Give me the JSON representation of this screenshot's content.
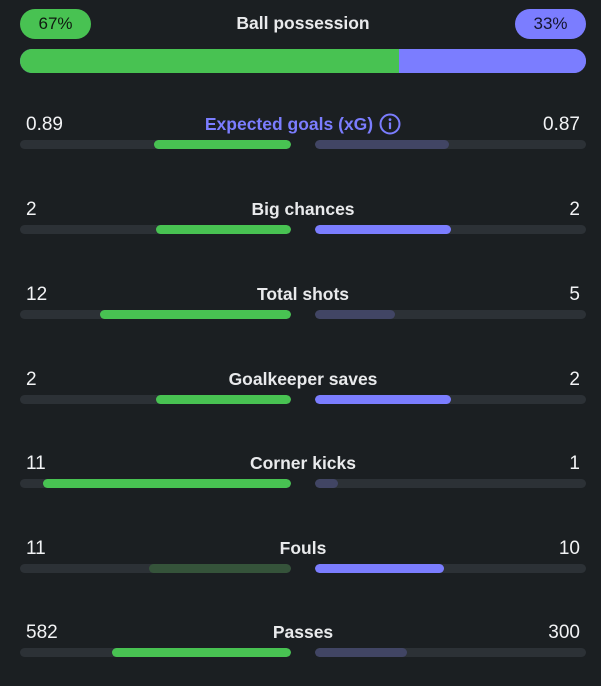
{
  "possession": {
    "label": "Ball possession",
    "home_label": "67%",
    "away_label": "33%",
    "home_value": 67,
    "away_value": 33,
    "home_color": "#48c252",
    "away_color": "#7b7dff"
  },
  "stats": [
    {
      "label": "Expected goals (xG)",
      "home": "0.89",
      "away": "0.87",
      "home_share": 0.5057,
      "away_share": 0.4943,
      "leader": "home",
      "has_info_icon": true
    },
    {
      "label": "Big chances",
      "home": "2",
      "away": "2",
      "home_share": 0.5,
      "away_share": 0.5,
      "leader": "both"
    },
    {
      "label": "Total shots",
      "home": "12",
      "away": "5",
      "home_share": 0.7059,
      "away_share": 0.2941,
      "leader": "home"
    },
    {
      "label": "Goalkeeper saves",
      "home": "2",
      "away": "2",
      "home_share": 0.5,
      "away_share": 0.5,
      "leader": "both"
    },
    {
      "label": "Corner kicks",
      "home": "11",
      "away": "1",
      "home_share": 0.9167,
      "away_share": 0.0833,
      "leader": "home"
    },
    {
      "label": "Fouls",
      "home": "11",
      "away": "10",
      "home_share": 0.5238,
      "away_share": 0.4762,
      "leader": "away"
    },
    {
      "label": "Passes",
      "home": "582",
      "away": "300",
      "home_share": 0.6599,
      "away_share": 0.3401,
      "leader": "home"
    }
  ],
  "icons": {
    "info": "info-circle-icon"
  },
  "colors": {
    "background": "#1b1f22",
    "home_strong": "#48c252",
    "home_dim": "#35533a",
    "away_strong": "#7b7dff",
    "away_dim": "#414564",
    "track": "#2c3136"
  }
}
